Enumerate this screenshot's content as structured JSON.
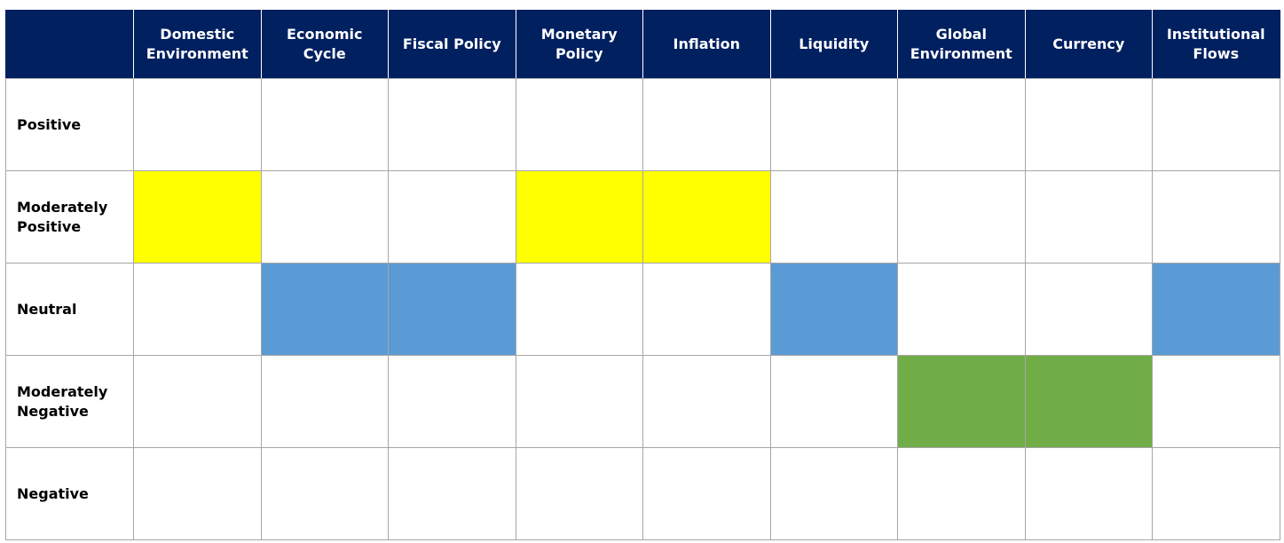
{
  "chart_data": {
    "type": "table",
    "title": "",
    "columns": [
      "Domestic Environment",
      "Economic Cycle",
      "Fiscal Policy",
      "Monetary Policy",
      "Inflation",
      "Liquidity",
      "Global Environment",
      "Currency",
      "Institutional Flows"
    ],
    "column_lines": [
      [
        "Domestic",
        "Environment"
      ],
      [
        "Economic",
        "Cycle"
      ],
      [
        "Fiscal Policy"
      ],
      [
        "Monetary",
        "Policy"
      ],
      [
        "Inflation"
      ],
      [
        "Liquidity"
      ],
      [
        "Global",
        "Environment"
      ],
      [
        "Currency"
      ],
      [
        "Institutional",
        "Flows"
      ]
    ],
    "rows": [
      "Positive",
      "Moderately Positive",
      "Neutral",
      "Moderately Negative",
      "Negative"
    ],
    "row_lines": [
      [
        "Positive"
      ],
      [
        "Moderately",
        "Positive"
      ],
      [
        "Neutral"
      ],
      [
        "Moderately",
        "Negative"
      ],
      [
        "Negative"
      ]
    ],
    "assessments": {
      "Domestic Environment": "Moderately Positive",
      "Economic Cycle": "Neutral",
      "Fiscal Policy": "Neutral",
      "Monetary Policy": "Moderately Positive",
      "Inflation": "Moderately Positive",
      "Liquidity": "Neutral",
      "Global Environment": "Moderately Negative",
      "Currency": "Moderately Negative",
      "Institutional Flows": "Neutral"
    },
    "row_colors": {
      "Moderately Positive": "#ffff00",
      "Neutral": "#5b9bd5",
      "Moderately Negative": "#70ad47"
    },
    "header_color": "#002060",
    "header_text_color": "#ffffff",
    "grid_color": "#a6a6a6"
  }
}
